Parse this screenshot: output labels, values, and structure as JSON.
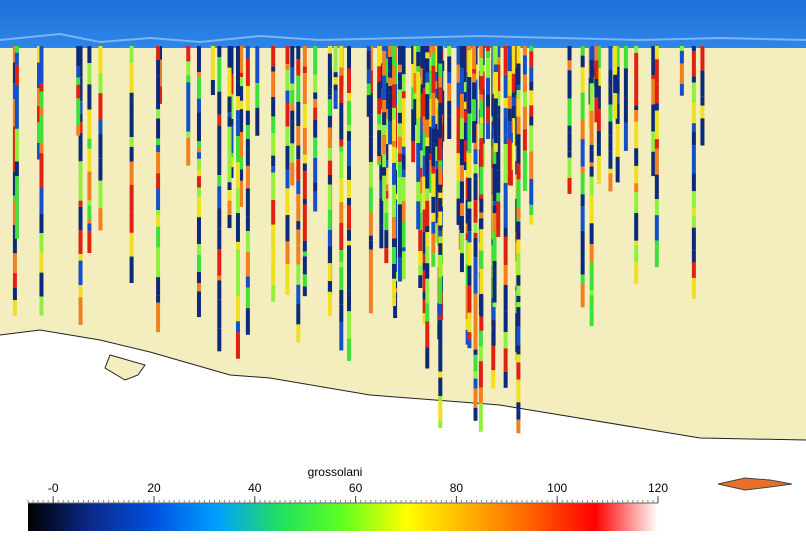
{
  "colorbar": {
    "title": "grossolani",
    "lim": [
      -5,
      120
    ],
    "ticks": [
      {
        "value": 0,
        "label": "-0"
      },
      20,
      40,
      60,
      80,
      100,
      120
    ],
    "colors": [
      "#000000",
      "#0a2a8a",
      "#0050e0",
      "#00a0ff",
      "#20e060",
      "#60ff20",
      "#ffff00",
      "#ffb000",
      "#ff6000",
      "#ff0000",
      "#ffffff"
    ]
  }
}
